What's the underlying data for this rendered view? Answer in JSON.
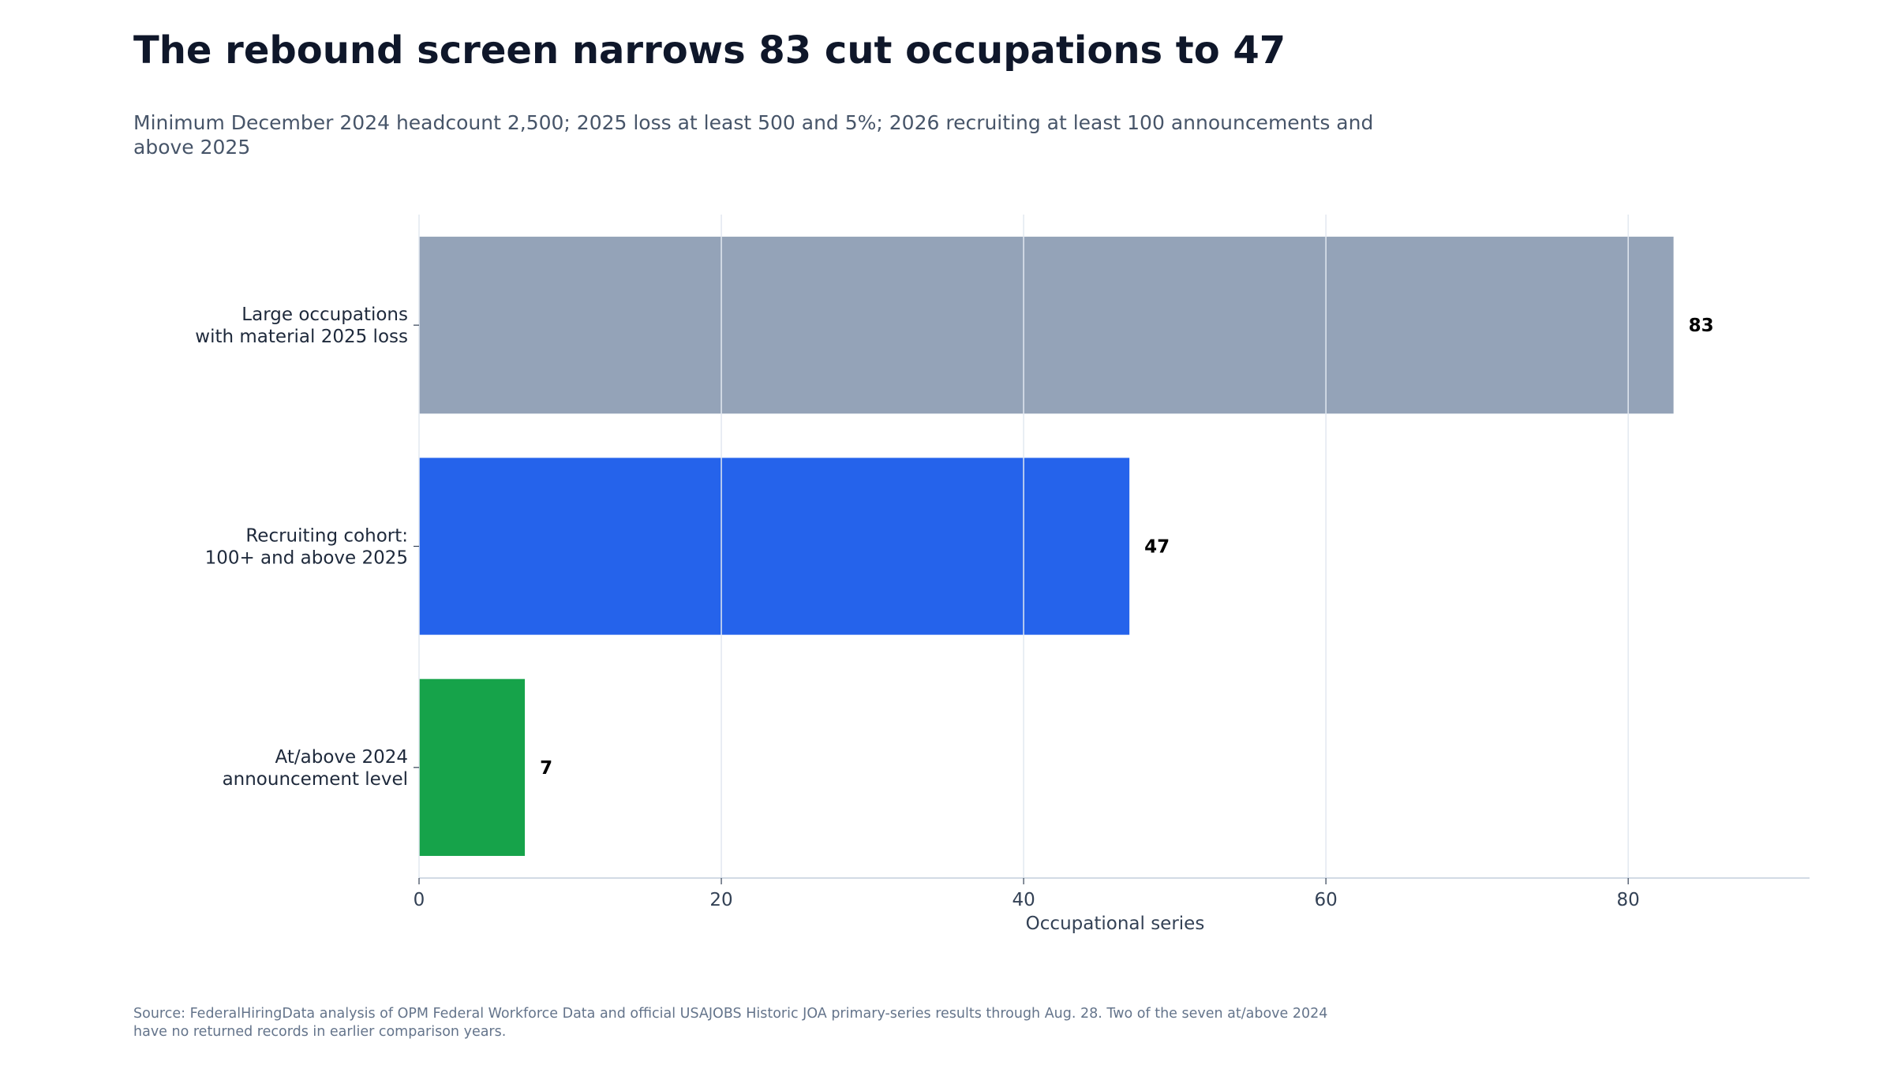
{
  "title": "The rebound screen narrows 83 cut occupations to 47",
  "subtitle": "Minimum December 2024 headcount 2,500; 2025 loss at least 500 and 5%; 2026 recruiting at least 100 announcements and above 2025",
  "footer": "Source: FederalHiringData analysis of OPM Federal Workforce Data and official USAJOBS Historic JOA primary-series results through Aug. 28. Two of the seven at/above 2024 have no returned records in earlier comparison years.",
  "chart_data": {
    "type": "bar",
    "orientation": "horizontal",
    "title": "The rebound screen narrows 83 cut occupations to 47",
    "subtitle": "Minimum December 2024 headcount 2,500; 2025 loss at least 500 and 5%; 2026 recruiting at least 100 announcements and above 2025",
    "xlabel": "Occupational series",
    "ylabel": "",
    "xlim": [
      0,
      92
    ],
    "xticks": [
      0,
      20,
      40,
      60,
      80
    ],
    "grid": true,
    "categories": [
      [
        "Large occupations",
        "with material 2025 loss"
      ],
      [
        "Recruiting cohort:",
        "100+ and above 2025"
      ],
      [
        "At/above 2024",
        "announcement level"
      ]
    ],
    "values": [
      83,
      47,
      7
    ],
    "data_labels": [
      "83",
      "47",
      "7"
    ],
    "colors": [
      "#94a3b8",
      "#2563eb",
      "#16a34a"
    ],
    "gridline_color": "#e2e8f0",
    "axis_color": "#cbd5e1",
    "label_color": "#1e293b"
  }
}
